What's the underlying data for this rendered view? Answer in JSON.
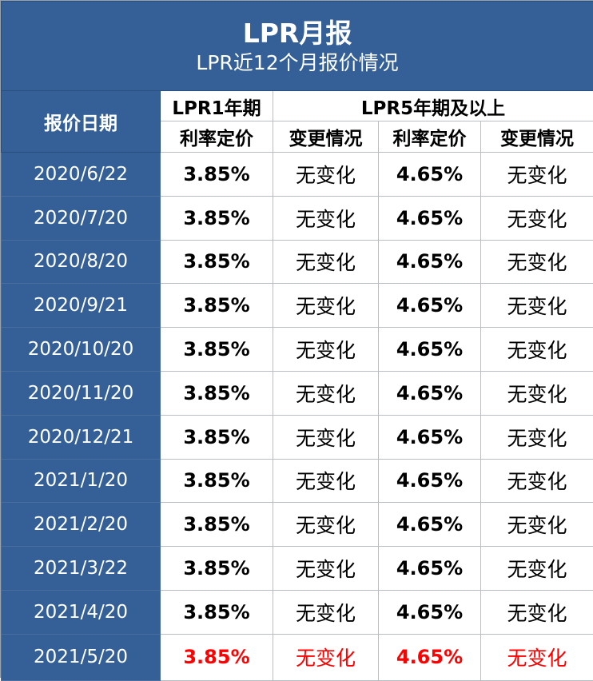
{
  "banner": {
    "title": "LPR月报",
    "subtitle": "LPR近12个月报价情况"
  },
  "header": {
    "date_label": "报价日期",
    "lpr1_label": "LPR1年期",
    "lpr5_label": "LPR5年期及以上",
    "rate_label": "利率定价",
    "change_label": "变更情况"
  },
  "colors": {
    "header_blue": "#346097",
    "highlight_red": "#ff0000"
  },
  "rows": [
    {
      "date": "2020/6/22",
      "lpr1_rate": "3.85%",
      "lpr1_change": "无变化",
      "lpr5_rate": "4.65%",
      "lpr5_change": "无变化"
    },
    {
      "date": "2020/7/20",
      "lpr1_rate": "3.85%",
      "lpr1_change": "无变化",
      "lpr5_rate": "4.65%",
      "lpr5_change": "无变化"
    },
    {
      "date": "2020/8/20",
      "lpr1_rate": "3.85%",
      "lpr1_change": "无变化",
      "lpr5_rate": "4.65%",
      "lpr5_change": "无变化"
    },
    {
      "date": "2020/9/21",
      "lpr1_rate": "3.85%",
      "lpr1_change": "无变化",
      "lpr5_rate": "4.65%",
      "lpr5_change": "无变化"
    },
    {
      "date": "2020/10/20",
      "lpr1_rate": "3.85%",
      "lpr1_change": "无变化",
      "lpr5_rate": "4.65%",
      "lpr5_change": "无变化"
    },
    {
      "date": "2020/11/20",
      "lpr1_rate": "3.85%",
      "lpr1_change": "无变化",
      "lpr5_rate": "4.65%",
      "lpr5_change": "无变化"
    },
    {
      "date": "2020/12/21",
      "lpr1_rate": "3.85%",
      "lpr1_change": "无变化",
      "lpr5_rate": "4.65%",
      "lpr5_change": "无变化"
    },
    {
      "date": "2021/1/20",
      "lpr1_rate": "3.85%",
      "lpr1_change": "无变化",
      "lpr5_rate": "4.65%",
      "lpr5_change": "无变化"
    },
    {
      "date": "2021/2/20",
      "lpr1_rate": "3.85%",
      "lpr1_change": "无变化",
      "lpr5_rate": "4.65%",
      "lpr5_change": "无变化"
    },
    {
      "date": "2021/3/22",
      "lpr1_rate": "3.85%",
      "lpr1_change": "无变化",
      "lpr5_rate": "4.65%",
      "lpr5_change": "无变化"
    },
    {
      "date": "2021/4/20",
      "lpr1_rate": "3.85%",
      "lpr1_change": "无变化",
      "lpr5_rate": "4.65%",
      "lpr5_change": "无变化"
    },
    {
      "date": "2021/5/20",
      "lpr1_rate": "3.85%",
      "lpr1_change": "无变化",
      "lpr5_rate": "4.65%",
      "lpr5_change": "无变化"
    }
  ]
}
